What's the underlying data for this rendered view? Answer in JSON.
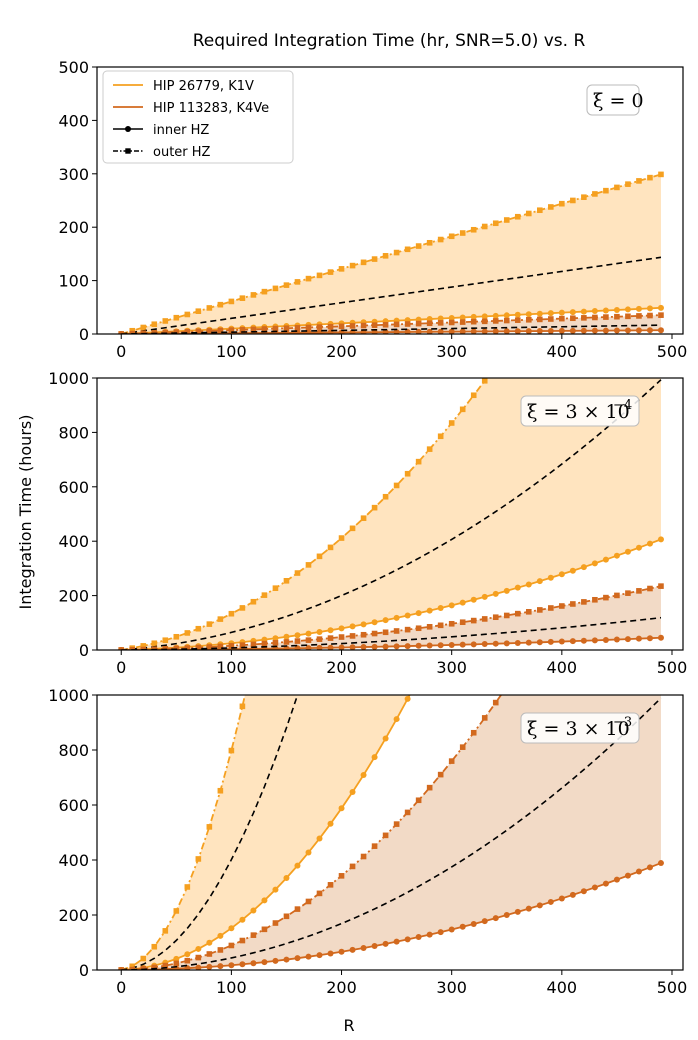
{
  "chart_data": {
    "type": "line",
    "title": "Required Integration Time (hr, SNR=5.0) vs. R",
    "xlabel": "R",
    "ylabel": "Integration Time (hours)",
    "colors": {
      "star1": "#f5a020",
      "star2": "#d2691e",
      "fill1": "#ffe4bf",
      "fill2": "#f2dac6"
    },
    "legend": {
      "placement": "top-left",
      "entries": [
        {
          "label": "HIP 26779, K1V",
          "style": "line-star1"
        },
        {
          "label": "HIP 113283, K4Ve",
          "style": "line-star2"
        },
        {
          "label": "inner HZ",
          "style": "solid-circle"
        },
        {
          "label": "outer HZ",
          "style": "dashdot-square"
        }
      ]
    },
    "panels": [
      {
        "xi_base": "ξ = 0",
        "xi_exp": "",
        "xlim": [
          -22,
          510
        ],
        "ylim": [
          0,
          500
        ],
        "xticks": [
          0,
          100,
          200,
          300,
          400,
          500
        ],
        "xtick_labels": [
          "0",
          "100",
          "200",
          "300",
          "400",
          "500"
        ],
        "yticks": [
          0,
          100,
          200,
          300,
          400,
          500
        ],
        "ytick_labels": [
          "0",
          "100",
          "200",
          "300",
          "400",
          "500"
        ],
        "series": [
          {
            "name": "HIP 26779, K1V inner HZ",
            "star": 1,
            "zone": "inner",
            "coef_a": 0.1,
            "coef_b": 0
          },
          {
            "name": "HIP 26779, K1V outer HZ",
            "star": 1,
            "zone": "outer",
            "coef_a": 0.61,
            "coef_b": 0
          },
          {
            "name": "HIP 26779, K1V mid",
            "star": 1,
            "zone": "mid",
            "coef_a": 0.293,
            "coef_b": 0
          },
          {
            "name": "HIP 113283, K4Ve inner HZ",
            "star": 2,
            "zone": "inner",
            "coef_a": 0.0145,
            "coef_b": 0
          },
          {
            "name": "HIP 113283, K4Ve outer HZ",
            "star": 2,
            "zone": "outer",
            "coef_a": 0.072,
            "coef_b": 0
          },
          {
            "name": "HIP 113283, K4Ve mid",
            "star": 2,
            "zone": "mid",
            "coef_a": 0.034,
            "coef_b": 0
          }
        ]
      },
      {
        "xi_base": "ξ = 3 × 10",
        "xi_exp": "−4",
        "xlim": [
          -22,
          510
        ],
        "ylim": [
          0,
          1000
        ],
        "xticks": [
          0,
          100,
          200,
          300,
          400,
          500
        ],
        "xtick_labels": [
          "0",
          "100",
          "200",
          "300",
          "400",
          "500"
        ],
        "yticks": [
          0,
          200,
          400,
          600,
          800,
          1000
        ],
        "ytick_labels": [
          "0",
          "200",
          "400",
          "600",
          "800",
          "1000"
        ],
        "series": [
          {
            "name": "HIP 26779, K1V inner HZ",
            "star": 1,
            "zone": "inner",
            "coef_a": 0.1,
            "coef_b": 0.00149
          },
          {
            "name": "HIP 26779, K1V outer HZ",
            "star": 1,
            "zone": "outer",
            "coef_a": 0.61,
            "coef_b": 0.00724
          },
          {
            "name": "HIP 26779, K1V mid",
            "star": 1,
            "zone": "mid",
            "coef_a": 0.293,
            "coef_b": 0.00354
          },
          {
            "name": "HIP 113283, K4Ve inner HZ",
            "star": 2,
            "zone": "inner",
            "coef_a": 0.0145,
            "coef_b": 0.000158
          },
          {
            "name": "HIP 113283, K4Ve outer HZ",
            "star": 2,
            "zone": "outer",
            "coef_a": 0.072,
            "coef_b": 0.000831
          },
          {
            "name": "HIP 113283, K4Ve mid",
            "star": 2,
            "zone": "mid",
            "coef_a": 0.034,
            "coef_b": 0.000425
          }
        ]
      },
      {
        "xi_base": "ξ = 3 × 10",
        "xi_exp": "−3",
        "xlim": [
          -22,
          510
        ],
        "ylim": [
          0,
          1000
        ],
        "xticks": [
          0,
          100,
          200,
          300,
          400,
          500
        ],
        "xtick_labels": [
          "0",
          "100",
          "200",
          "300",
          "400",
          "500"
        ],
        "yticks": [
          0,
          200,
          400,
          600,
          800,
          1000
        ],
        "ytick_labels": [
          "0",
          "200",
          "400",
          "600",
          "800",
          "1000"
        ],
        "series": [
          {
            "name": "HIP 26779, K1V inner HZ",
            "star": 1,
            "zone": "inner",
            "coef_a": 0.1,
            "coef_b": 0.0142
          },
          {
            "name": "HIP 26779, K1V outer HZ",
            "star": 1,
            "zone": "outer",
            "coef_a": 0.61,
            "coef_b": 0.0737
          },
          {
            "name": "HIP 26779, K1V mid",
            "star": 1,
            "zone": "mid",
            "coef_a": 0.293,
            "coef_b": 0.0372
          },
          {
            "name": "HIP 113283, K4Ve inner HZ",
            "star": 2,
            "zone": "inner",
            "coef_a": 0.0145,
            "coef_b": 0.00159
          },
          {
            "name": "HIP 113283, K4Ve outer HZ",
            "star": 2,
            "zone": "outer",
            "coef_a": 0.072,
            "coef_b": 0.0082
          },
          {
            "name": "HIP 113283, K4Ve mid",
            "star": 2,
            "zone": "mid",
            "coef_a": 0.034,
            "coef_b": 0.00405
          }
        ]
      }
    ],
    "x_samples": {
      "start": 0,
      "end": 490,
      "step": 10
    }
  }
}
